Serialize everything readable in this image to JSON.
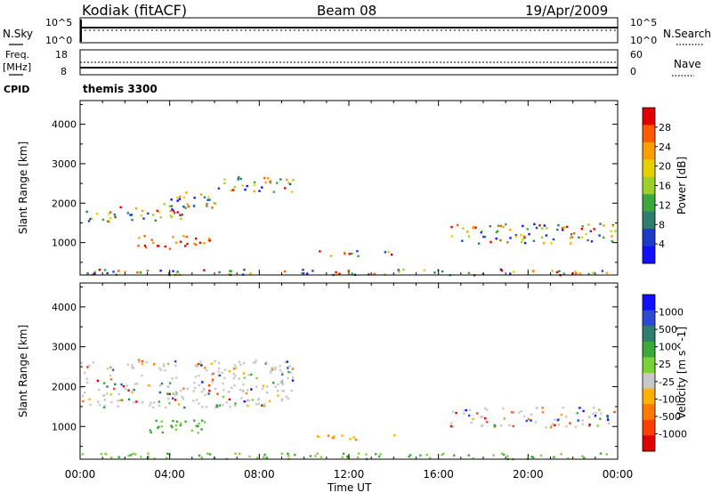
{
  "header": {
    "station": "Kodiak (fitACF)",
    "beam": "Beam 08",
    "date": "19/Apr/2009",
    "program": "themis 3300"
  },
  "strips": {
    "sky": {
      "left_label": "N.Sky",
      "right_label": "N.Search",
      "left_ticks": [
        "10^5",
        "10^0"
      ],
      "right_ticks": [
        "10^5",
        "10^0"
      ]
    },
    "freq": {
      "left_label_top": "Freq.",
      "left_label_bottom": "[MHz]",
      "right_label": "Nave",
      "left_ticks": [
        "18",
        "8"
      ],
      "right_ticks": [
        "60",
        "0"
      ]
    },
    "cpid_label": "CPID"
  },
  "chart_data": [
    {
      "type": "heatmap",
      "title": "Power",
      "ylabel": "Slant Range [km]",
      "colorbar_label": "Power [dB]",
      "ylim": [
        180,
        4600
      ],
      "yticks": [
        1000,
        2000,
        3000,
        4000
      ],
      "colorbar_ticks": [
        "28",
        "24",
        "20",
        "16",
        "12",
        "8",
        "4"
      ],
      "colorbar_colors": [
        "#e00000",
        "#ff5a00",
        "#ff9c00",
        "#e8d000",
        "#9ad22a",
        "#3aa83a",
        "#2e7d6e",
        "#1c3cc8",
        "#1010ff"
      ],
      "scatter_regions": [
        {
          "t0": 0.0,
          "t1": 1.5,
          "r0": 1500,
          "r1": 1850
        },
        {
          "t0": 1.5,
          "t1": 4.6,
          "r0": 1550,
          "r1": 1950
        },
        {
          "t0": 3.7,
          "t1": 6.5,
          "r0": 1900,
          "r1": 2300
        },
        {
          "t0": 6.0,
          "t1": 9.5,
          "r0": 2300,
          "r1": 2700
        },
        {
          "t0": 2.5,
          "t1": 5.8,
          "r0": 850,
          "r1": 1200
        },
        {
          "t0": 10.5,
          "t1": 14.0,
          "r0": 680,
          "r1": 820
        },
        {
          "t0": 16.5,
          "t1": 24.0,
          "r0": 1000,
          "r1": 1500
        },
        {
          "t0": 0.0,
          "t1": 24.0,
          "r0": 200,
          "r1": 350
        }
      ]
    },
    {
      "type": "heatmap",
      "title": "Velocity",
      "ylabel": "Slant Range [km]",
      "colorbar_label": "Velocity [m s^-1]",
      "ylim": [
        180,
        4600
      ],
      "yticks": [
        1000,
        2000,
        3000,
        4000
      ],
      "colorbar_ticks": [
        "1000",
        "500",
        "100",
        "25",
        "-25",
        "-100",
        "-500",
        "-1000"
      ],
      "colorbar_colors": [
        "#1010ff",
        "#2e4bd0",
        "#2e7d6e",
        "#3aa83a",
        "#7ad23a",
        "#c8c8c8",
        "#ffb000",
        "#ff7a00",
        "#ff4000",
        "#e00000"
      ],
      "scatter_regions": [
        {
          "t0": 0.0,
          "t1": 9.5,
          "r0": 1500,
          "r1": 2700
        },
        {
          "t0": 2.5,
          "t1": 5.8,
          "r0": 850,
          "r1": 1200
        },
        {
          "t0": 10.5,
          "t1": 14.0,
          "r0": 680,
          "r1": 820
        },
        {
          "t0": 16.5,
          "t1": 24.0,
          "r0": 1000,
          "r1": 1500
        },
        {
          "t0": 0.0,
          "t1": 24.0,
          "r0": 200,
          "r1": 350
        }
      ]
    }
  ],
  "x_axis": {
    "label": "Time UT",
    "ticks": [
      "00:00",
      "04:00",
      "08:00",
      "12:00",
      "16:00",
      "20:00",
      "00:00"
    ],
    "xlim_hours": [
      0,
      24
    ]
  }
}
